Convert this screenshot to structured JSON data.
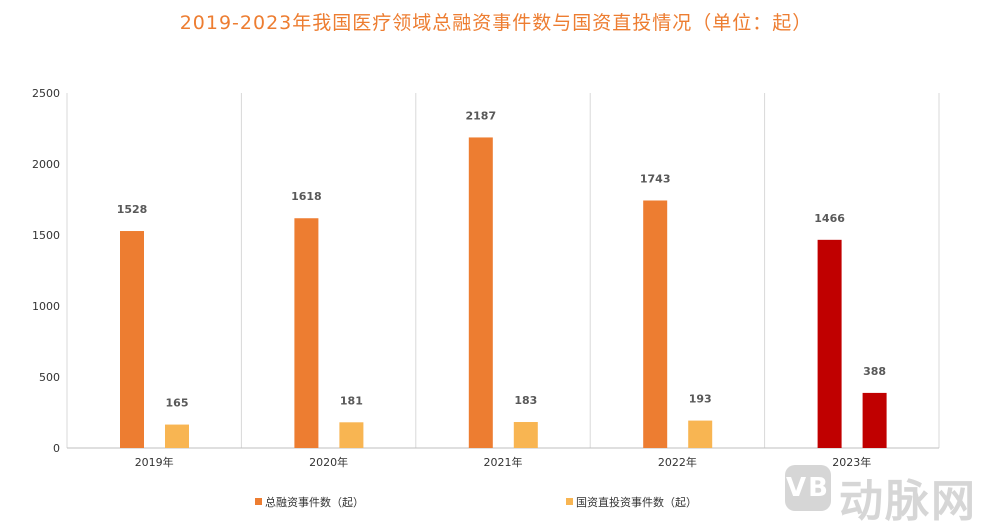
{
  "chart_data": {
    "type": "bar",
    "title": "2019-2023年我国医疗领域总融资事件数与国资直投情况（单位：起）",
    "categories": [
      "2019年",
      "2020年",
      "2021年",
      "2022年",
      "2023年"
    ],
    "series": [
      {
        "name": "总融资事件数（起）",
        "values": [
          1528,
          1618,
          2187,
          1743,
          1466
        ],
        "color": "#ED7D31",
        "highlight_color": "#C00000"
      },
      {
        "name": "国资直投资事件数（起）",
        "values": [
          165,
          181,
          183,
          193,
          388
        ],
        "color": "#F8B552",
        "highlight_color": "#C00000"
      }
    ],
    "highlight_category": "2023年",
    "ylim": [
      0,
      2500
    ],
    "yticks": [
      0,
      500,
      1000,
      1500,
      2000,
      2500
    ],
    "grid": "vertical",
    "legend": "bottom",
    "data_labels": true
  },
  "watermark": "动脉网"
}
